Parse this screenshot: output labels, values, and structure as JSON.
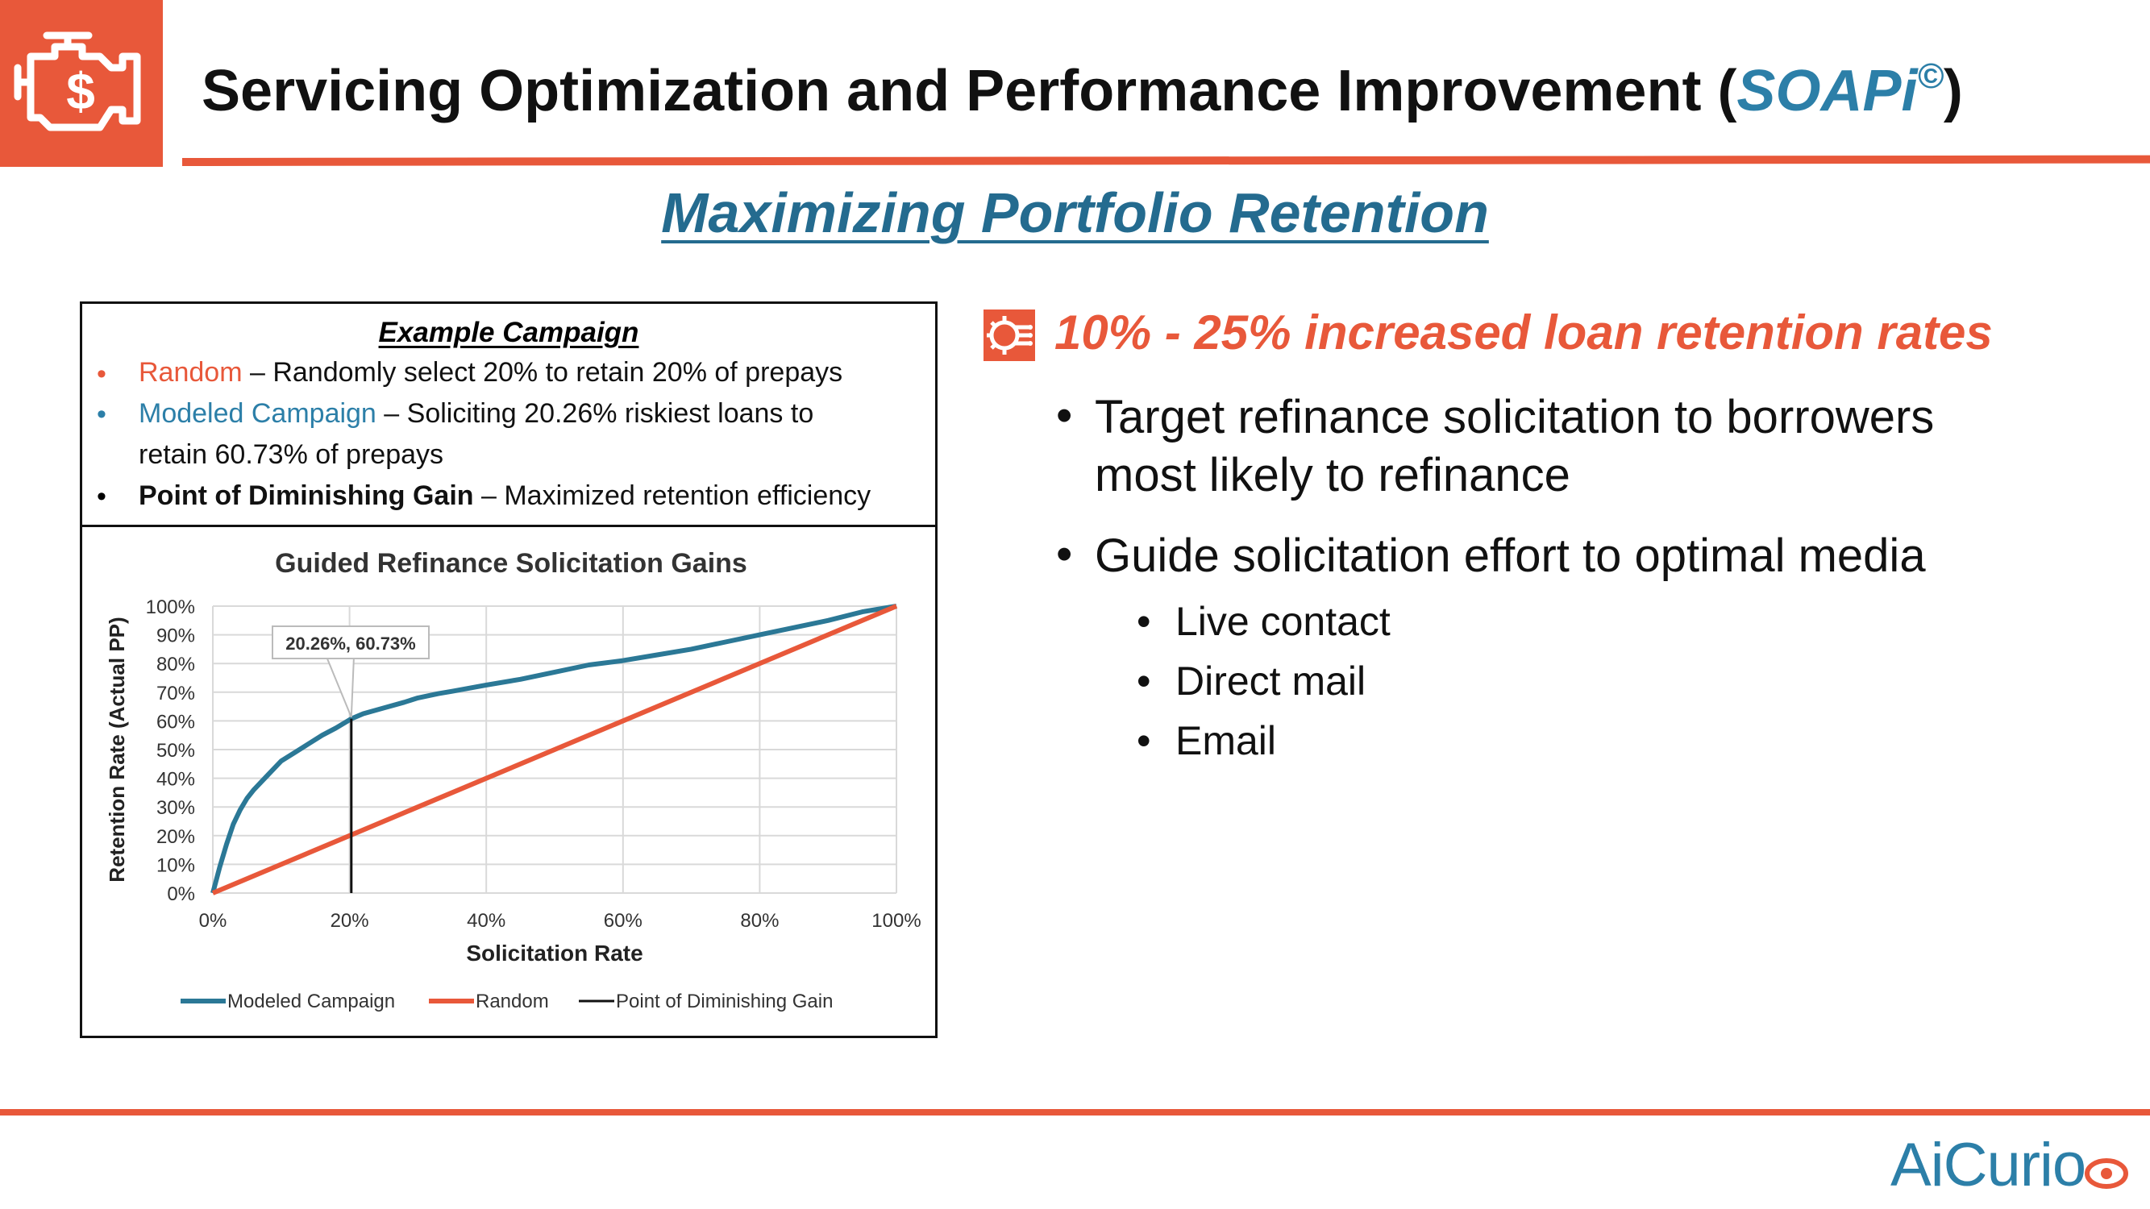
{
  "header": {
    "title_main": "Servicing Optimization and Performance Improvement (",
    "title_accent": "SOAPi",
    "title_mark": "©",
    "title_close": ")"
  },
  "subtitle": "Maximizing Portfolio Retention",
  "campaign": {
    "title": "Example Campaign",
    "items": [
      {
        "label": "Random",
        "text": " – Randomly select 20% to retain 20% of prepays"
      },
      {
        "label": "Modeled Campaign",
        "text": " – Soliciting 20.26% riskiest loans to",
        "text2": "retain 60.73% of prepays"
      },
      {
        "label": "Point of Diminishing Gain",
        "text": " – Maximized retention efficiency"
      }
    ],
    "bullet": "•"
  },
  "chart_data": {
    "type": "line",
    "title": "Guided Refinance Solicitation Gains",
    "xlabel": "Solicitation Rate",
    "ylabel": "Retention Rate (Actual PP)",
    "xlim": [
      0,
      100
    ],
    "ylim": [
      0,
      100
    ],
    "x_ticks": [
      "0%",
      "20%",
      "40%",
      "60%",
      "80%",
      "100%"
    ],
    "y_ticks": [
      "0%",
      "10%",
      "20%",
      "30%",
      "40%",
      "50%",
      "60%",
      "70%",
      "80%",
      "90%",
      "100%"
    ],
    "annotation": {
      "text": "20.26%, 60.73%",
      "x": 20.26,
      "y": 60.73
    },
    "series": [
      {
        "name": "Modeled Campaign",
        "color": "#2b7896",
        "x": [
          0,
          1,
          2,
          3,
          4,
          5,
          6,
          8,
          10,
          12,
          14,
          16,
          18,
          20.26,
          22,
          25,
          28,
          30,
          33,
          35,
          40,
          45,
          50,
          55,
          60,
          65,
          70,
          75,
          80,
          85,
          90,
          95,
          100
        ],
        "y": [
          0,
          9,
          17,
          24,
          29,
          33,
          36,
          41,
          46,
          49,
          52,
          55,
          57.5,
          60.73,
          62.5,
          64.5,
          66.5,
          68,
          69.5,
          70.3,
          72.5,
          74.5,
          77,
          79.5,
          81,
          83,
          85,
          87.5,
          90,
          92.5,
          95,
          98,
          100
        ]
      },
      {
        "name": "Random",
        "color": "#e8583a",
        "x": [
          0,
          100
        ],
        "y": [
          0,
          100
        ]
      },
      {
        "name": "Point of Diminishing Gain",
        "color": "#111111",
        "x": [
          20.26,
          20.26
        ],
        "y": [
          0,
          60.73
        ]
      }
    ],
    "legend": [
      "Modeled Campaign",
      "Random",
      "Point of Diminishing Gain"
    ],
    "grid": true,
    "legend_position": "bottom"
  },
  "feature": {
    "text": "10% - 25% increased loan retention rates",
    "icon": "gear-chip-icon"
  },
  "bullets": [
    {
      "lines": [
        "Target refinance solicitation to borrowers",
        "most likely to refinance"
      ]
    },
    {
      "lines": [
        "Guide solicitation effort to optimal media"
      ]
    }
  ],
  "sub_bullets": [
    "Live contact",
    "Direct mail",
    "Email"
  ],
  "bullet_char": "•",
  "footer": {
    "logo_ai": "Ai",
    "logo_curio": "Curio"
  },
  "colors": {
    "accent": "#e8583a",
    "brand_blue": "#2c7fa8",
    "title_blue": "#246b8f"
  }
}
